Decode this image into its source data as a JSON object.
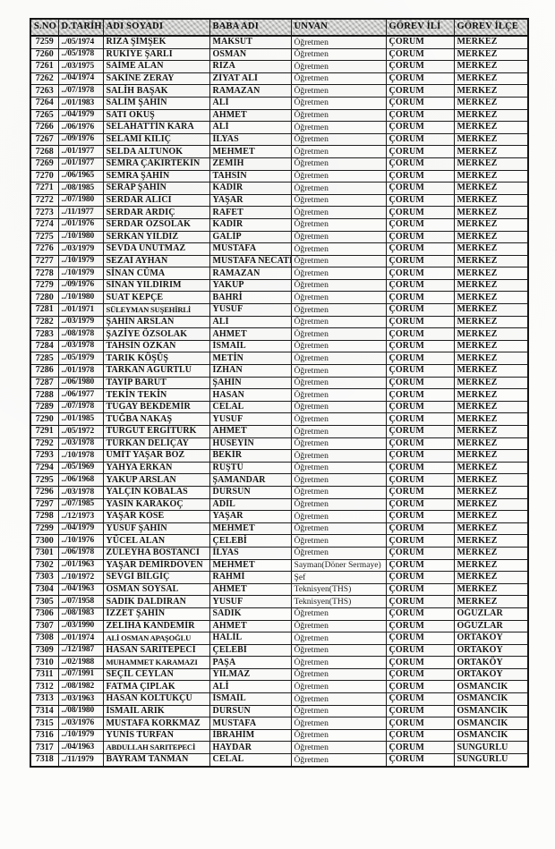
{
  "table": {
    "headers": [
      "S.NO",
      "D.TARİHİ",
      "ADI SOYADI",
      "BABA ADI",
      "UNVAN",
      "GÖREV İLİ",
      "GÖREV İLÇE"
    ],
    "rows": [
      [
        "7259",
        "../05/1974",
        "RIZA ŞİMŞEK",
        "MAKSUT",
        "Öğretmen",
        "ÇORUM",
        "MERKEZ"
      ],
      [
        "7260",
        "../05/1978",
        "RUKİYE ŞARLI",
        "OSMAN",
        "Öğretmen",
        "ÇORUM",
        "MERKEZ"
      ],
      [
        "7261",
        "../03/1975",
        "SAİME ALAN",
        "RIZA",
        "Öğretmen",
        "ÇORUM",
        "MERKEZ"
      ],
      [
        "7262",
        "../04/1974",
        "SAKİNE ZERAY",
        "ZİYAT ALİ",
        "Öğretmen",
        "ÇORUM",
        "MERKEZ"
      ],
      [
        "7263",
        "../07/1978",
        "SALİH BAŞAK",
        "RAMAZAN",
        "Öğretmen",
        "ÇORUM",
        "MERKEZ"
      ],
      [
        "7264",
        "../01/1983",
        "SALİM ŞAHİN",
        "ALİ",
        "Öğretmen",
        "ÇORUM",
        "MERKEZ"
      ],
      [
        "7265",
        "../04/1979",
        "SATI OKUŞ",
        "AHMET",
        "Öğretmen",
        "ÇORUM",
        "MERKEZ"
      ],
      [
        "7266",
        "../06/1976",
        "SELAHATTİN KARA",
        "ALİ",
        "Öğretmen",
        "ÇORUM",
        "MERKEZ"
      ],
      [
        "7267",
        "../09/1976",
        "SELAMİ KILIÇ",
        "İLYAS",
        "Öğretmen",
        "ÇORUM",
        "MERKEZ"
      ],
      [
        "7268",
        "../01/1977",
        "SELDA ALTUNOK",
        "MEHMET",
        "Öğretmen",
        "ÇORUM",
        "MERKEZ"
      ],
      [
        "7269",
        "../01/1977",
        "SEMRA ÇAKIRTEKİN",
        "ZEMİH",
        "Öğretmen",
        "ÇORUM",
        "MERKEZ"
      ],
      [
        "7270",
        "../06/1965",
        "SEMRA ŞAHİN",
        "TAHSİN",
        "Öğretmen",
        "ÇORUM",
        "MERKEZ"
      ],
      [
        "7271",
        "../08/1985",
        "SERAP ŞAHİN",
        "KADİR",
        "Öğretmen",
        "ÇORUM",
        "MERKEZ"
      ],
      [
        "7272",
        "../07/1980",
        "SERDAR ALICI",
        "YAŞAR",
        "Öğretmen",
        "ÇORUM",
        "MERKEZ"
      ],
      [
        "7273",
        "../11/1977",
        "SERDAR ARDIÇ",
        "RAFET",
        "Öğretmen",
        "ÇORUM",
        "MERKEZ"
      ],
      [
        "7274",
        "../01/1976",
        "SERDAR ÖZSOLAK",
        "KADİR",
        "Öğretmen",
        "ÇORUM",
        "MERKEZ"
      ],
      [
        "7275",
        "../10/1980",
        "SERKAN YILDIZ",
        "GALİP",
        "Öğretmen",
        "ÇORUM",
        "MERKEZ"
      ],
      [
        "7276",
        "../03/1979",
        "SEVDA UNUTMAZ",
        "MUSTAFA",
        "Öğretmen",
        "ÇORUM",
        "MERKEZ"
      ],
      [
        "7277",
        "../10/1979",
        "SEZAİ AYHAN",
        "MUSTAFA NECATİ",
        "Öğretmen",
        "ÇORUM",
        "MERKEZ"
      ],
      [
        "7278",
        "../10/1979",
        "SİNAN CÜMA",
        "RAMAZAN",
        "Öğretmen",
        "ÇORUM",
        "MERKEZ"
      ],
      [
        "7279",
        "../09/1976",
        "SİNAN YILDIRIM",
        "YAKUP",
        "Öğretmen",
        "ÇORUM",
        "MERKEZ"
      ],
      [
        "7280",
        "../10/1980",
        "SUAT KEPÇE",
        "BAHRİ",
        "Öğretmen",
        "ÇORUM",
        "MERKEZ"
      ],
      [
        "7281",
        "../01/1971",
        "SÜLEYMAN SUŞEHİRLİ",
        "YUSUF",
        "Öğretmen",
        "ÇORUM",
        "MERKEZ"
      ],
      [
        "7282",
        "../03/1979",
        "ŞAHİN ARSLAN",
        "ALİ",
        "Öğretmen",
        "ÇORUM",
        "MERKEZ"
      ],
      [
        "7283",
        "../08/1978",
        "ŞAZİYE ÖZSOLAK",
        "AHMET",
        "Öğretmen",
        "ÇORUM",
        "MERKEZ"
      ],
      [
        "7284",
        "../03/1978",
        "TAHSİN ÖZKAN",
        "İSMAİL",
        "Öğretmen",
        "ÇORUM",
        "MERKEZ"
      ],
      [
        "7285",
        "../05/1979",
        "TARIK KÖŞÜŞ",
        "METİN",
        "Öğretmen",
        "ÇORUM",
        "MERKEZ"
      ],
      [
        "7286",
        "../01/1978",
        "TARKAN AGURTLU",
        "İZHAN",
        "Öğretmen",
        "ÇORUM",
        "MERKEZ"
      ],
      [
        "7287",
        "../06/1980",
        "TAYİP BARUT",
        "ŞAHİN",
        "Öğretmen",
        "ÇORUM",
        "MERKEZ"
      ],
      [
        "7288",
        "../06/1977",
        "TEKİN TEKİN",
        "HASAN",
        "Öğretmen",
        "ÇORUM",
        "MERKEZ"
      ],
      [
        "7289",
        "../07/1978",
        "TUGAY BEKDEMİR",
        "CELAL",
        "Öğretmen",
        "ÇORUM",
        "MERKEZ"
      ],
      [
        "7290",
        "../01/1985",
        "TUĞBA NAKAŞ",
        "YUSUF",
        "Öğretmen",
        "ÇORUM",
        "MERKEZ"
      ],
      [
        "7291",
        "../05/1972",
        "TURGUT ERGİTÜRK",
        "AHMET",
        "Öğretmen",
        "ÇORUM",
        "MERKEZ"
      ],
      [
        "7292",
        "../03/1978",
        "TÜRKAN DELİÇAY",
        "HÜSEYİN",
        "Öğretmen",
        "ÇORUM",
        "MERKEZ"
      ],
      [
        "7293",
        "../10/1978",
        "ÜMİT YAŞAR BOZ",
        "BEKİR",
        "Öğretmen",
        "ÇORUM",
        "MERKEZ"
      ],
      [
        "7294",
        "../05/1969",
        "YAHYA ERKAN",
        "RÜŞTÜ",
        "Öğretmen",
        "ÇORUM",
        "MERKEZ"
      ],
      [
        "7295",
        "../06/1968",
        "YAKUP ARSLAN",
        "ŞAMANDAR",
        "Öğretmen",
        "ÇORUM",
        "MERKEZ"
      ],
      [
        "7296",
        "../03/1978",
        "YALÇIN KOBALAS",
        "DURSUN",
        "Öğretmen",
        "ÇORUM",
        "MERKEZ"
      ],
      [
        "7297",
        "../07/1985",
        "YASİN KARAKOÇ",
        "ADİL",
        "Öğretmen",
        "ÇORUM",
        "MERKEZ"
      ],
      [
        "7298",
        "../12/1973",
        "YAŞAR KÖSE",
        "YAŞAR",
        "Öğretmen",
        "ÇORUM",
        "MERKEZ"
      ],
      [
        "7299",
        "../04/1979",
        "YUSUF ŞAHİN",
        "MEHMET",
        "Öğretmen",
        "ÇORUM",
        "MERKEZ"
      ],
      [
        "7300",
        "../10/1976",
        "YÜCEL ALAN",
        "ÇELEBİ",
        "Öğretmen",
        "ÇORUM",
        "MERKEZ"
      ],
      [
        "7301",
        "../06/1978",
        "ZÜLEYHA BOSTANCI",
        "İLYAS",
        "Öğretmen",
        "ÇORUM",
        "MERKEZ"
      ],
      [
        "7302",
        "../01/1963",
        "YAŞAR DEMİRDÖVEN",
        "MEHMET",
        "Sayman(Döner Sermaye)",
        "ÇORUM",
        "MERKEZ"
      ],
      [
        "7303",
        "../10/1972",
        "SEVGİ BİLGİÇ",
        "RAHMİ",
        "Şef",
        "ÇORUM",
        "MERKEZ"
      ],
      [
        "7304",
        "../04/1963",
        "OSMAN SOYSAL",
        "AHMET",
        "Teknisyen(THS)",
        "ÇORUM",
        "MERKEZ"
      ],
      [
        "7305",
        "../07/1958",
        "SADIK DALDIRAN",
        "YUSUF",
        "Teknisyen(THS)",
        "ÇORUM",
        "MERKEZ"
      ],
      [
        "7306",
        "../08/1983",
        "İZZET ŞAHİN",
        "SADIK",
        "Öğretmen",
        "ÇORUM",
        "OĞUZLAR"
      ],
      [
        "7307",
        "../03/1990",
        "ZELİHA KANDEMİR",
        "AHMET",
        "Öğretmen",
        "ÇORUM",
        "OĞUZLAR"
      ],
      [
        "7308",
        "../01/1974",
        "ALİ OSMAN APAŞOĞLU",
        "HALİL",
        "Öğretmen",
        "ÇORUM",
        "ORTAKÖY"
      ],
      [
        "7309",
        "../12/1987",
        "HASAN SARITEPECİ",
        "ÇELEBİ",
        "Öğretmen",
        "ÇORUM",
        "ORTAKÖY"
      ],
      [
        "7310",
        "../02/1988",
        "MUHAMMET KARAMAZI",
        "PAŞA",
        "Öğretmen",
        "ÇORUM",
        "ORTAKÖY"
      ],
      [
        "7311",
        "../07/1991",
        "SEÇİL CEYLAN",
        "YILMAZ",
        "Öğretmen",
        "ÇORUM",
        "ORTAKÖY"
      ],
      [
        "7312",
        "../08/1982",
        "FATMA ÇIPLAK",
        "ALİ",
        "Öğretmen",
        "ÇORUM",
        "OSMANCIK"
      ],
      [
        "7313",
        "../03/1963",
        "HASAN KOLTUKÇU",
        "İSMAİL",
        "Öğretmen",
        "ÇORUM",
        "OSMANCIK"
      ],
      [
        "7314",
        "../08/1980",
        "İSMAİL ARIK",
        "DURSUN",
        "Öğretmen",
        "ÇORUM",
        "OSMANCIK"
      ],
      [
        "7315",
        "../03/1976",
        "MUSTAFA KORKMAZ",
        "MUSTAFA",
        "Öğretmen",
        "ÇORUM",
        "OSMANCIK"
      ],
      [
        "7316",
        "../10/1979",
        "YUNİS TURFAN",
        "İBRAHİM",
        "Öğretmen",
        "ÇORUM",
        "OSMANCIK"
      ],
      [
        "7317",
        "../04/1963",
        "ABDULLAH SARITEPECİ",
        "HAYDAR",
        "Öğretmen",
        "ÇORUM",
        "SUNGURLU"
      ],
      [
        "7318",
        "../11/1979",
        "BAYRAM TANMAN",
        "CELAL",
        "Öğretmen",
        "ÇORUM",
        "SUNGURLU"
      ]
    ]
  },
  "colors": {
    "page_background": "#fbfbfa",
    "header_background": "#c7c7c5",
    "border": "#1c1c1c",
    "text": "#141414"
  }
}
